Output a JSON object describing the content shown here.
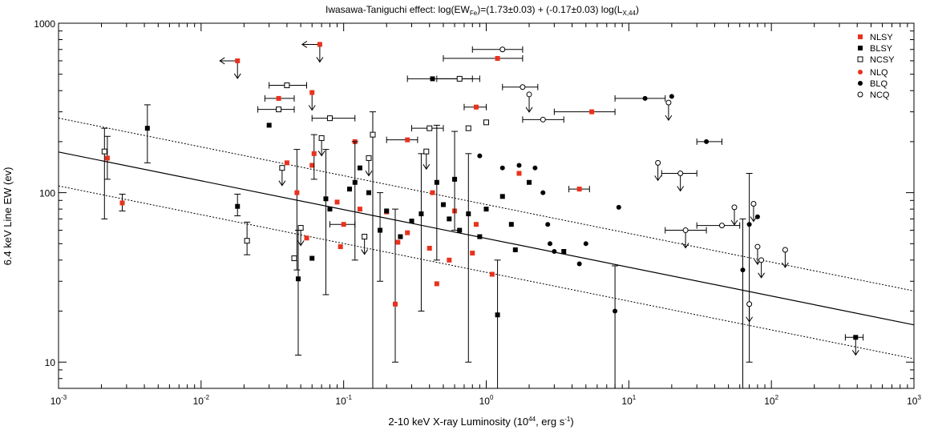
{
  "chart_data": {
    "type": "scatter",
    "title_prefix": "Iwasawa-Taniguchi  effect:  log(EW",
    "title_sub1": "Fe",
    "title_mid": ")=(1.73±0.03) + (-0.17±0.03) log(L",
    "title_sub2": "X,44",
    "title_suffix": ")",
    "xlabel_prefix": "2-10 keV X-ray Luminosity (10",
    "xlabel_sup1": "44",
    "xlabel_mid": ", erg s",
    "xlabel_sup2": "-1",
    "xlabel_suffix": ")",
    "ylabel": "6.4 keV Line EW (ev)",
    "xscale": "log",
    "yscale": "log",
    "xlim": [
      0.001,
      1000
    ],
    "ylim": [
      7,
      1000
    ],
    "x_ticks": [
      {
        "value": 0.001,
        "base": "10",
        "exp": "-3"
      },
      {
        "value": 0.01,
        "base": "10",
        "exp": "-2"
      },
      {
        "value": 0.1,
        "base": "10",
        "exp": "-1"
      },
      {
        "value": 1,
        "base": "10",
        "exp": "0"
      },
      {
        "value": 10,
        "base": "10",
        "exp": "1"
      },
      {
        "value": 100,
        "base": "10",
        "exp": "2"
      },
      {
        "value": 1000,
        "base": "10",
        "exp": "3"
      }
    ],
    "y_ticks": [
      {
        "value": 10,
        "label": "10"
      },
      {
        "value": 100,
        "label": "100"
      },
      {
        "value": 1000,
        "label": "1000"
      }
    ],
    "fit": {
      "intercept": 1.73,
      "slope": -0.17,
      "scatter_offset": 0.2
    },
    "legend_position": "top-right",
    "series": [
      {
        "name": "NLSY",
        "marker": "square-filled",
        "color": "#e8321e",
        "points": [
          {
            "x": 0.0022,
            "y": 160,
            "ylo": 120,
            "yhi": 215
          },
          {
            "x": 0.0028,
            "y": 87,
            "ylo": 78,
            "yhi": 98
          },
          {
            "x": 0.018,
            "y": 600,
            "upper": true,
            "xarrow": true
          },
          {
            "x": 0.035,
            "y": 360,
            "xlo": 0.028,
            "xhi": 0.045
          },
          {
            "x": 0.04,
            "y": 150
          },
          {
            "x": 0.047,
            "y": 100,
            "ylo": 35,
            "yhi": 180
          },
          {
            "x": 0.055,
            "y": 54
          },
          {
            "x": 0.06,
            "y": 390,
            "upper": true
          },
          {
            "x": 0.06,
            "y": 145
          },
          {
            "x": 0.062,
            "y": 170,
            "ylo": 120,
            "yhi": 220
          },
          {
            "x": 0.068,
            "y": 750,
            "upper": true,
            "xarrow": true
          },
          {
            "x": 0.09,
            "y": 88
          },
          {
            "x": 0.095,
            "y": 48
          },
          {
            "x": 0.1,
            "y": 65,
            "xlo": 0.08,
            "xhi": 0.12
          },
          {
            "x": 0.12,
            "y": 200
          },
          {
            "x": 0.13,
            "y": 80
          },
          {
            "x": 0.2,
            "y": 77
          },
          {
            "x": 0.23,
            "y": 22,
            "ylo": 10,
            "yhi": 80
          },
          {
            "x": 0.24,
            "y": 51
          },
          {
            "x": 0.28,
            "y": 205,
            "xlo": 0.2,
            "xhi": 0.33
          },
          {
            "x": 0.28,
            "y": 58
          },
          {
            "x": 0.4,
            "y": 47
          },
          {
            "x": 0.42,
            "y": 100
          },
          {
            "x": 0.45,
            "y": 29
          },
          {
            "x": 0.55,
            "y": 40
          },
          {
            "x": 0.6,
            "y": 78
          },
          {
            "x": 0.8,
            "y": 44
          },
          {
            "x": 0.85,
            "y": 65
          },
          {
            "x": 0.85,
            "y": 320
          },
          {
            "x": 1.1,
            "y": 33
          },
          {
            "x": 1.2,
            "y": 620,
            "xlo": 0.5,
            "xhi": 1.8
          },
          {
            "x": 1.7,
            "y": 130
          },
          {
            "x": 4.5,
            "y": 105,
            "xlo": 3.8,
            "xhi": 5.3
          },
          {
            "x": 5.5,
            "y": 300,
            "xlo": 3,
            "xhi": 8
          }
        ]
      },
      {
        "name": "BLSY",
        "marker": "square-filled",
        "color": "#000000",
        "points": [
          {
            "x": 0.0042,
            "y": 240,
            "ylo": 150,
            "yhi": 330
          },
          {
            "x": 0.018,
            "y": 83,
            "ylo": 73,
            "yhi": 98
          },
          {
            "x": 0.03,
            "y": 250
          },
          {
            "x": 0.048,
            "y": 31,
            "ylo": 11,
            "yhi": 60
          },
          {
            "x": 0.06,
            "y": 41
          },
          {
            "x": 0.075,
            "y": 92,
            "ylo": 25,
            "yhi": 180
          },
          {
            "x": 0.08,
            "y": 80
          },
          {
            "x": 0.11,
            "y": 105
          },
          {
            "x": 0.12,
            "y": 115,
            "ylo": 40,
            "yhi": 200
          },
          {
            "x": 0.13,
            "y": 140
          },
          {
            "x": 0.15,
            "y": 100
          },
          {
            "x": 0.18,
            "y": 60,
            "ylo": 30,
            "yhi": 100
          },
          {
            "x": 0.2,
            "y": 78
          },
          {
            "x": 0.25,
            "y": 55
          },
          {
            "x": 0.3,
            "y": 68
          },
          {
            "x": 0.35,
            "y": 75,
            "ylo": 20,
            "yhi": 170
          },
          {
            "x": 0.42,
            "y": 470,
            "xlo": 0.28,
            "xhi": 0.8
          },
          {
            "x": 0.45,
            "y": 115,
            "ylo": 40,
            "yhi": 250
          },
          {
            "x": 0.5,
            "y": 85
          },
          {
            "x": 0.55,
            "y": 70
          },
          {
            "x": 0.6,
            "y": 120,
            "ylo": 60,
            "yhi": 230
          },
          {
            "x": 0.65,
            "y": 60
          },
          {
            "x": 0.75,
            "y": 75,
            "ylo": 10,
            "yhi": 170
          },
          {
            "x": 0.9,
            "y": 55
          },
          {
            "x": 1.0,
            "y": 80
          },
          {
            "x": 1.2,
            "y": 19,
            "ylo": 7,
            "yhi": 40
          },
          {
            "x": 1.3,
            "y": 95
          },
          {
            "x": 1.5,
            "y": 65
          },
          {
            "x": 1.6,
            "y": 46
          },
          {
            "x": 2.0,
            "y": 115
          },
          {
            "x": 3.5,
            "y": 45
          },
          {
            "x": 390,
            "y": 14,
            "xlo": 330,
            "xhi": 440,
            "upper": true
          }
        ]
      },
      {
        "name": "NCSY",
        "marker": "square-open",
        "color": "#000000",
        "points": [
          {
            "x": 0.0021,
            "y": 175,
            "ylo": 70,
            "yhi": 240
          },
          {
            "x": 0.021,
            "y": 52,
            "ylo": 43,
            "yhi": 67
          },
          {
            "x": 0.035,
            "y": 310,
            "xlo": 0.025,
            "xhi": 0.045
          },
          {
            "x": 0.037,
            "y": 140,
            "upper": true
          },
          {
            "x": 0.04,
            "y": 430,
            "xlo": 0.03,
            "xhi": 0.055
          },
          {
            "x": 0.045,
            "y": 41
          },
          {
            "x": 0.05,
            "y": 62,
            "upper": true
          },
          {
            "x": 0.07,
            "y": 210,
            "upper": true
          },
          {
            "x": 0.08,
            "y": 275,
            "xlo": 0.06,
            "xhi": 0.12
          },
          {
            "x": 0.14,
            "y": 55,
            "upper": true
          },
          {
            "x": 0.15,
            "y": 160,
            "upper": true
          },
          {
            "x": 0.16,
            "y": 220,
            "ylo": 7,
            "yhi": 300
          },
          {
            "x": 0.38,
            "y": 175,
            "upper": true
          },
          {
            "x": 0.4,
            "y": 240,
            "xlo": 0.3,
            "xhi": 0.5
          },
          {
            "x": 0.65,
            "y": 470,
            "xlo": 0.45,
            "xhi": 0.9
          },
          {
            "x": 0.75,
            "y": 240
          },
          {
            "x": 1.0,
            "y": 260
          }
        ]
      },
      {
        "name": "NLQ",
        "marker": "circle-filled",
        "color": "#e8321e",
        "points": [
          {
            "x": 0.85,
            "y": 320,
            "xlo": 0.7,
            "xhi": 1.0
          },
          {
            "x": 5.5,
            "y": 300
          }
        ]
      },
      {
        "name": "BLQ",
        "marker": "circle-filled",
        "color": "#000000",
        "points": [
          {
            "x": 0.9,
            "y": 165
          },
          {
            "x": 1.3,
            "y": 140
          },
          {
            "x": 1.7,
            "y": 145
          },
          {
            "x": 2.2,
            "y": 140
          },
          {
            "x": 2.5,
            "y": 100
          },
          {
            "x": 2.8,
            "y": 50
          },
          {
            "x": 2.7,
            "y": 65
          },
          {
            "x": 3.0,
            "y": 45
          },
          {
            "x": 4.5,
            "y": 38
          },
          {
            "x": 5.0,
            "y": 50
          },
          {
            "x": 8.0,
            "y": 20,
            "ylo": 7,
            "yhi": 37
          },
          {
            "x": 8.5,
            "y": 82
          },
          {
            "x": 13,
            "y": 360,
            "xlo": 8,
            "xhi": 18
          },
          {
            "x": 20,
            "y": 370
          },
          {
            "x": 35,
            "y": 200,
            "xlo": 30,
            "xhi": 45
          },
          {
            "x": 63,
            "y": 35,
            "ylo": 7,
            "yhi": 70
          },
          {
            "x": 70,
            "y": 65,
            "ylo": 10,
            "yhi": 130
          },
          {
            "x": 80,
            "y": 72
          }
        ]
      },
      {
        "name": "NCQ",
        "marker": "circle-open",
        "color": "#000000",
        "points": [
          {
            "x": 1.3,
            "y": 700,
            "xlo": 0.8,
            "xhi": 1.8
          },
          {
            "x": 1.8,
            "y": 420,
            "xlo": 1.3,
            "xhi": 2.3
          },
          {
            "x": 2.0,
            "y": 380,
            "upper": true
          },
          {
            "x": 2.5,
            "y": 270,
            "xlo": 1.8,
            "xhi": 3.5
          },
          {
            "x": 16,
            "y": 150,
            "upper": true
          },
          {
            "x": 19,
            "y": 340,
            "upper": true
          },
          {
            "x": 23,
            "y": 130,
            "xlo": 17,
            "xhi": 30,
            "upper": true
          },
          {
            "x": 25,
            "y": 60,
            "xlo": 18,
            "xhi": 35,
            "upper": true
          },
          {
            "x": 45,
            "y": 64,
            "xlo": 30,
            "xhi": 60
          },
          {
            "x": 55,
            "y": 82,
            "upper": true
          },
          {
            "x": 70,
            "y": 22,
            "upper": true
          },
          {
            "x": 75,
            "y": 86,
            "upper": true
          },
          {
            "x": 80,
            "y": 48,
            "upper": true
          },
          {
            "x": 85,
            "y": 40,
            "upper": true
          },
          {
            "x": 125,
            "y": 46,
            "upper": true
          }
        ]
      }
    ]
  }
}
